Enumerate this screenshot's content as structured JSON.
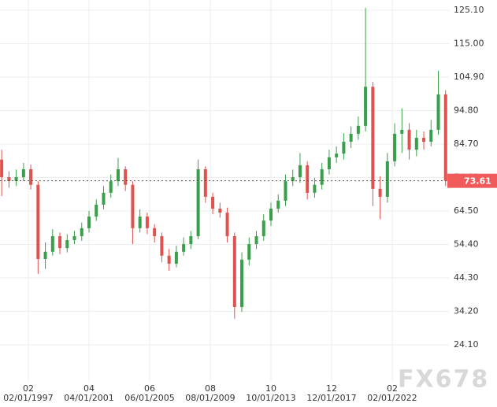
{
  "chart_data": {
    "type": "candlestick",
    "up_color": "#3a9f4a",
    "down_color": "#e0524f",
    "grid": true,
    "last_price": 73.61,
    "last_price_color": "#f05a5a",
    "watermark": "FX678",
    "xlim": [
      1995.135,
      2025.98
    ],
    "ylim": [
      12.93,
      128.19
    ],
    "yticks": [
      {
        "value": 24.1,
        "label": "24.10"
      },
      {
        "value": 34.2,
        "label": "34.20"
      },
      {
        "value": 44.3,
        "label": "44.30"
      },
      {
        "value": 54.4,
        "label": "54.40"
      },
      {
        "value": 64.5,
        "label": "64.50"
      },
      {
        "value": 74.6,
        "label": "74.60"
      },
      {
        "value": 84.7,
        "label": "84.70"
      },
      {
        "value": 94.8,
        "label": "94.80"
      },
      {
        "value": 104.9,
        "label": "104.90"
      },
      {
        "value": 115,
        "label": "115.00"
      },
      {
        "value": 125.1,
        "label": "125.10"
      }
    ],
    "xticks": [
      {
        "value": 1997.083,
        "label": "02",
        "date": "02/01/1997"
      },
      {
        "value": 2001.25,
        "label": "04",
        "date": "04/01/2001"
      },
      {
        "value": 2005.417,
        "label": "06",
        "date": "06/01/2005"
      },
      {
        "value": 2009.583,
        "label": "08",
        "date": "08/01/2009"
      },
      {
        "value": 2013.75,
        "label": "10",
        "date": "10/01/2013"
      },
      {
        "value": 2017.917,
        "label": "12",
        "date": "12/01/2017"
      },
      {
        "value": 2022.083,
        "label": "02",
        "date": "02/01/2022"
      }
    ],
    "x": [
      1995.25,
      1995.75,
      1996.25,
      1996.75,
      1997.25,
      1997.75,
      1998.25,
      1998.75,
      1999.25,
      1999.75,
      2000.25,
      2000.75,
      2001.25,
      2001.75,
      2002.25,
      2002.75,
      2003.25,
      2003.75,
      2004.25,
      2004.75,
      2005.25,
      2005.75,
      2006.25,
      2006.75,
      2007.25,
      2007.75,
      2008.25,
      2008.75,
      2009.25,
      2009.75,
      2010.25,
      2010.75,
      2011.25,
      2011.75,
      2012.25,
      2012.75,
      2013.25,
      2013.75,
      2014.25,
      2014.75,
      2015.25,
      2015.75,
      2016.25,
      2016.75,
      2017.25,
      2017.75,
      2018.25,
      2018.75,
      2019.25,
      2019.75,
      2020.25,
      2020.75,
      2021.25,
      2021.75,
      2022.25,
      2022.75,
      2023.25,
      2023.75,
      2024.25,
      2024.75,
      2025.25,
      2025.75
    ],
    "open": [
      80.0,
      74.7,
      73.5,
      74.7,
      77.1,
      72.4,
      50.0,
      52.2,
      56.9,
      53.3,
      55.7,
      56.9,
      59.3,
      62.8,
      66.4,
      70.0,
      73.5,
      77.1,
      72.4,
      59.3,
      62.8,
      59.3,
      56.9,
      51.0,
      48.6,
      52.2,
      54.5,
      56.9,
      77.1,
      68.8,
      65.2,
      64.0,
      56.9,
      35.5,
      49.8,
      54.5,
      56.9,
      61.6,
      65.2,
      67.6,
      73.5,
      74.7,
      78.3,
      70.0,
      72.4,
      77.1,
      80.7,
      81.8,
      85.4,
      87.8,
      90.2,
      102.0,
      71.2,
      68.8,
      79.5,
      87.8,
      89.0,
      83.0,
      86.6,
      85.4,
      89.0,
      99.7
    ],
    "high": [
      83.0,
      76.5,
      77,
      79,
      78.5,
      73.5,
      55,
      59,
      58,
      57.5,
      58.5,
      61,
      64.5,
      68,
      72,
      75.5,
      80.5,
      78,
      73.5,
      65,
      64,
      60.5,
      58,
      53,
      54,
      56.5,
      58.5,
      80.0,
      78,
      70,
      67,
      65.5,
      58,
      52,
      56.5,
      58.5,
      63.5,
      67,
      69.5,
      75.5,
      77,
      82.0,
      79.5,
      74.5,
      79,
      83,
      84,
      88,
      90,
      93,
      125.8,
      103.5,
      75,
      82,
      91,
      95.5,
      91,
      89,
      88.5,
      92,
      106.8,
      101
    ],
    "low": [
      69,
      71.5,
      72,
      73.5,
      71,
      45.5,
      47,
      51,
      51.5,
      52,
      54.5,
      55.5,
      58,
      61.5,
      65,
      68.5,
      72,
      70.5,
      54.5,
      58,
      57.5,
      55,
      49,
      46.5,
      47.5,
      51,
      53,
      56,
      67,
      63.5,
      62.5,
      55,
      32.0,
      34,
      48,
      53,
      55.5,
      60,
      64,
      66,
      72,
      73,
      68,
      68.5,
      71,
      75.5,
      79,
      80,
      83.5,
      86,
      88.5,
      66,
      62.0,
      67,
      78,
      82,
      80,
      81,
      83,
      84,
      87.5,
      72
    ],
    "close": [
      74.7,
      73.5,
      74.7,
      77.1,
      72.4,
      50.0,
      52.2,
      56.9,
      53.3,
      55.7,
      56.9,
      59.3,
      62.8,
      66.4,
      70.0,
      73.5,
      77.1,
      72.4,
      59.3,
      62.8,
      59.3,
      56.9,
      51.0,
      48.6,
      52.2,
      54.5,
      56.9,
      77.1,
      68.8,
      65.2,
      64.0,
      56.9,
      35.5,
      49.8,
      54.5,
      56.9,
      61.6,
      65.2,
      67.6,
      73.5,
      74.7,
      78.3,
      70.0,
      72.4,
      77.1,
      80.7,
      81.8,
      85.4,
      87.8,
      90.2,
      102.0,
      71.2,
      68.8,
      79.5,
      87.8,
      89.0,
      83.0,
      86.6,
      85.4,
      89.0,
      99.7,
      73.61
    ]
  }
}
